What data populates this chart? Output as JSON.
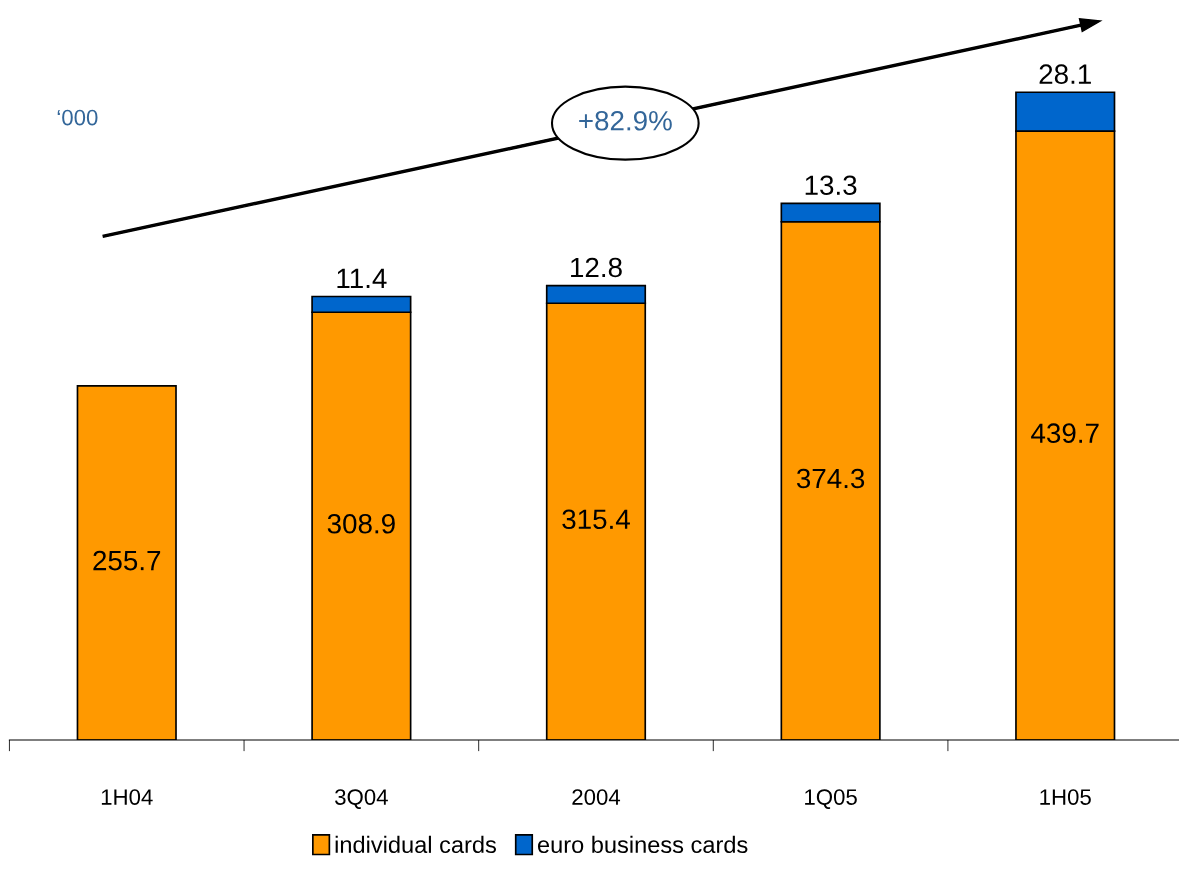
{
  "chart_data": {
    "type": "bar",
    "stacked": true,
    "categories": [
      "1H04",
      "3Q04",
      "2004",
      "1Q05",
      "1H05"
    ],
    "series": [
      {
        "name": "individual cards",
        "color": "#ff9900",
        "values": [
          255.7,
          308.9,
          315.4,
          374.3,
          439.7
        ],
        "value_labels": [
          "255.7",
          "308.9",
          "315.4",
          "374.3",
          "439.7"
        ]
      },
      {
        "name": "euro business cards",
        "color": "#0066cc",
        "values": [
          null,
          11.4,
          12.8,
          13.3,
          28.1
        ],
        "value_labels": [
          null,
          "11.4",
          "12.8",
          "13.3",
          "28.1"
        ]
      }
    ],
    "tick_labels": "x",
    "grid": false,
    "legend": "bottom",
    "annotations": [
      "‘000",
      "+82.9%"
    ]
  }
}
